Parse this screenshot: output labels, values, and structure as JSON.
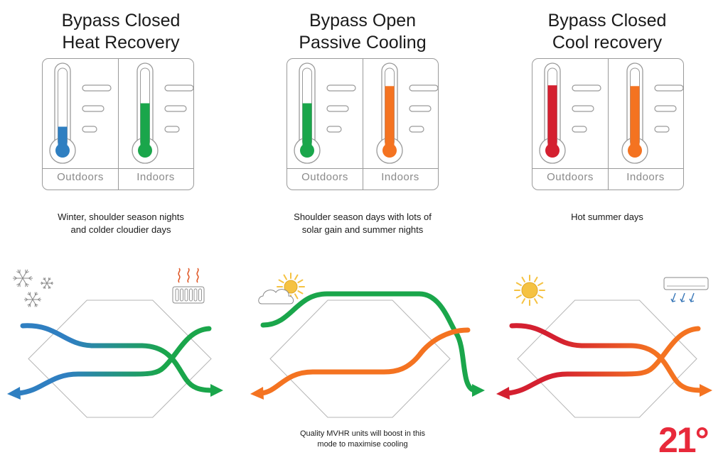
{
  "panels": [
    {
      "title_line1": "Bypass Closed",
      "title_line2": "Heat Recovery",
      "outdoor_label": "Outdoors",
      "indoor_label": "Indoors",
      "outdoor_level": 0.25,
      "indoor_level": 0.55,
      "outdoor_color": "#2f7fc1",
      "indoor_color": "#1aa64b",
      "caption_line1": "Winter, shoulder season nights",
      "caption_line2": "and colder cloudier days",
      "supply_color_start": "#2f7fc1",
      "supply_color_end": "#1aa64b",
      "extract_color_start": "#1aa64b",
      "extract_color_end": "#2f7fc1",
      "icon_left": "snowflakes-icon",
      "icon_right": "radiator-icon"
    },
    {
      "title_line1": "Bypass Open",
      "title_line2": "Passive Cooling",
      "outdoor_label": "Outdoors",
      "indoor_label": "Indoors",
      "outdoor_level": 0.55,
      "indoor_level": 0.77,
      "outdoor_color": "#1aa64b",
      "indoor_color": "#f47321",
      "caption_line1": "Shoulder season days with lots of",
      "caption_line2": "solar gain and summer nights",
      "supply_color_start": "#1aa64b",
      "supply_color_end": "#1aa64b",
      "extract_color_start": "#f47321",
      "extract_color_end": "#f47321",
      "icon_left": "sun-cloud-icon"
    },
    {
      "title_line1": "Bypass Closed",
      "title_line2": "Cool recovery",
      "outdoor_label": "Outdoors",
      "indoor_label": "Indoors",
      "outdoor_level": 0.78,
      "indoor_level": 0.77,
      "outdoor_color": "#d42030",
      "indoor_color": "#f47321",
      "caption_line1": "Hot summer days",
      "caption_line2": "",
      "supply_color_start": "#d42030",
      "supply_color_end": "#f47321",
      "extract_color_start": "#f47321",
      "extract_color_end": "#d42030",
      "icon_left": "sun-icon",
      "icon_right": "air-conditioner-icon"
    }
  ],
  "note_line1": "Quality MVHR units will boost in this",
  "note_line2": "mode to maximise cooling",
  "logo_text": "21°",
  "colors": {
    "border": "#9a9a9a",
    "brand_red": "#e8293a",
    "sun": "#f5c242"
  }
}
